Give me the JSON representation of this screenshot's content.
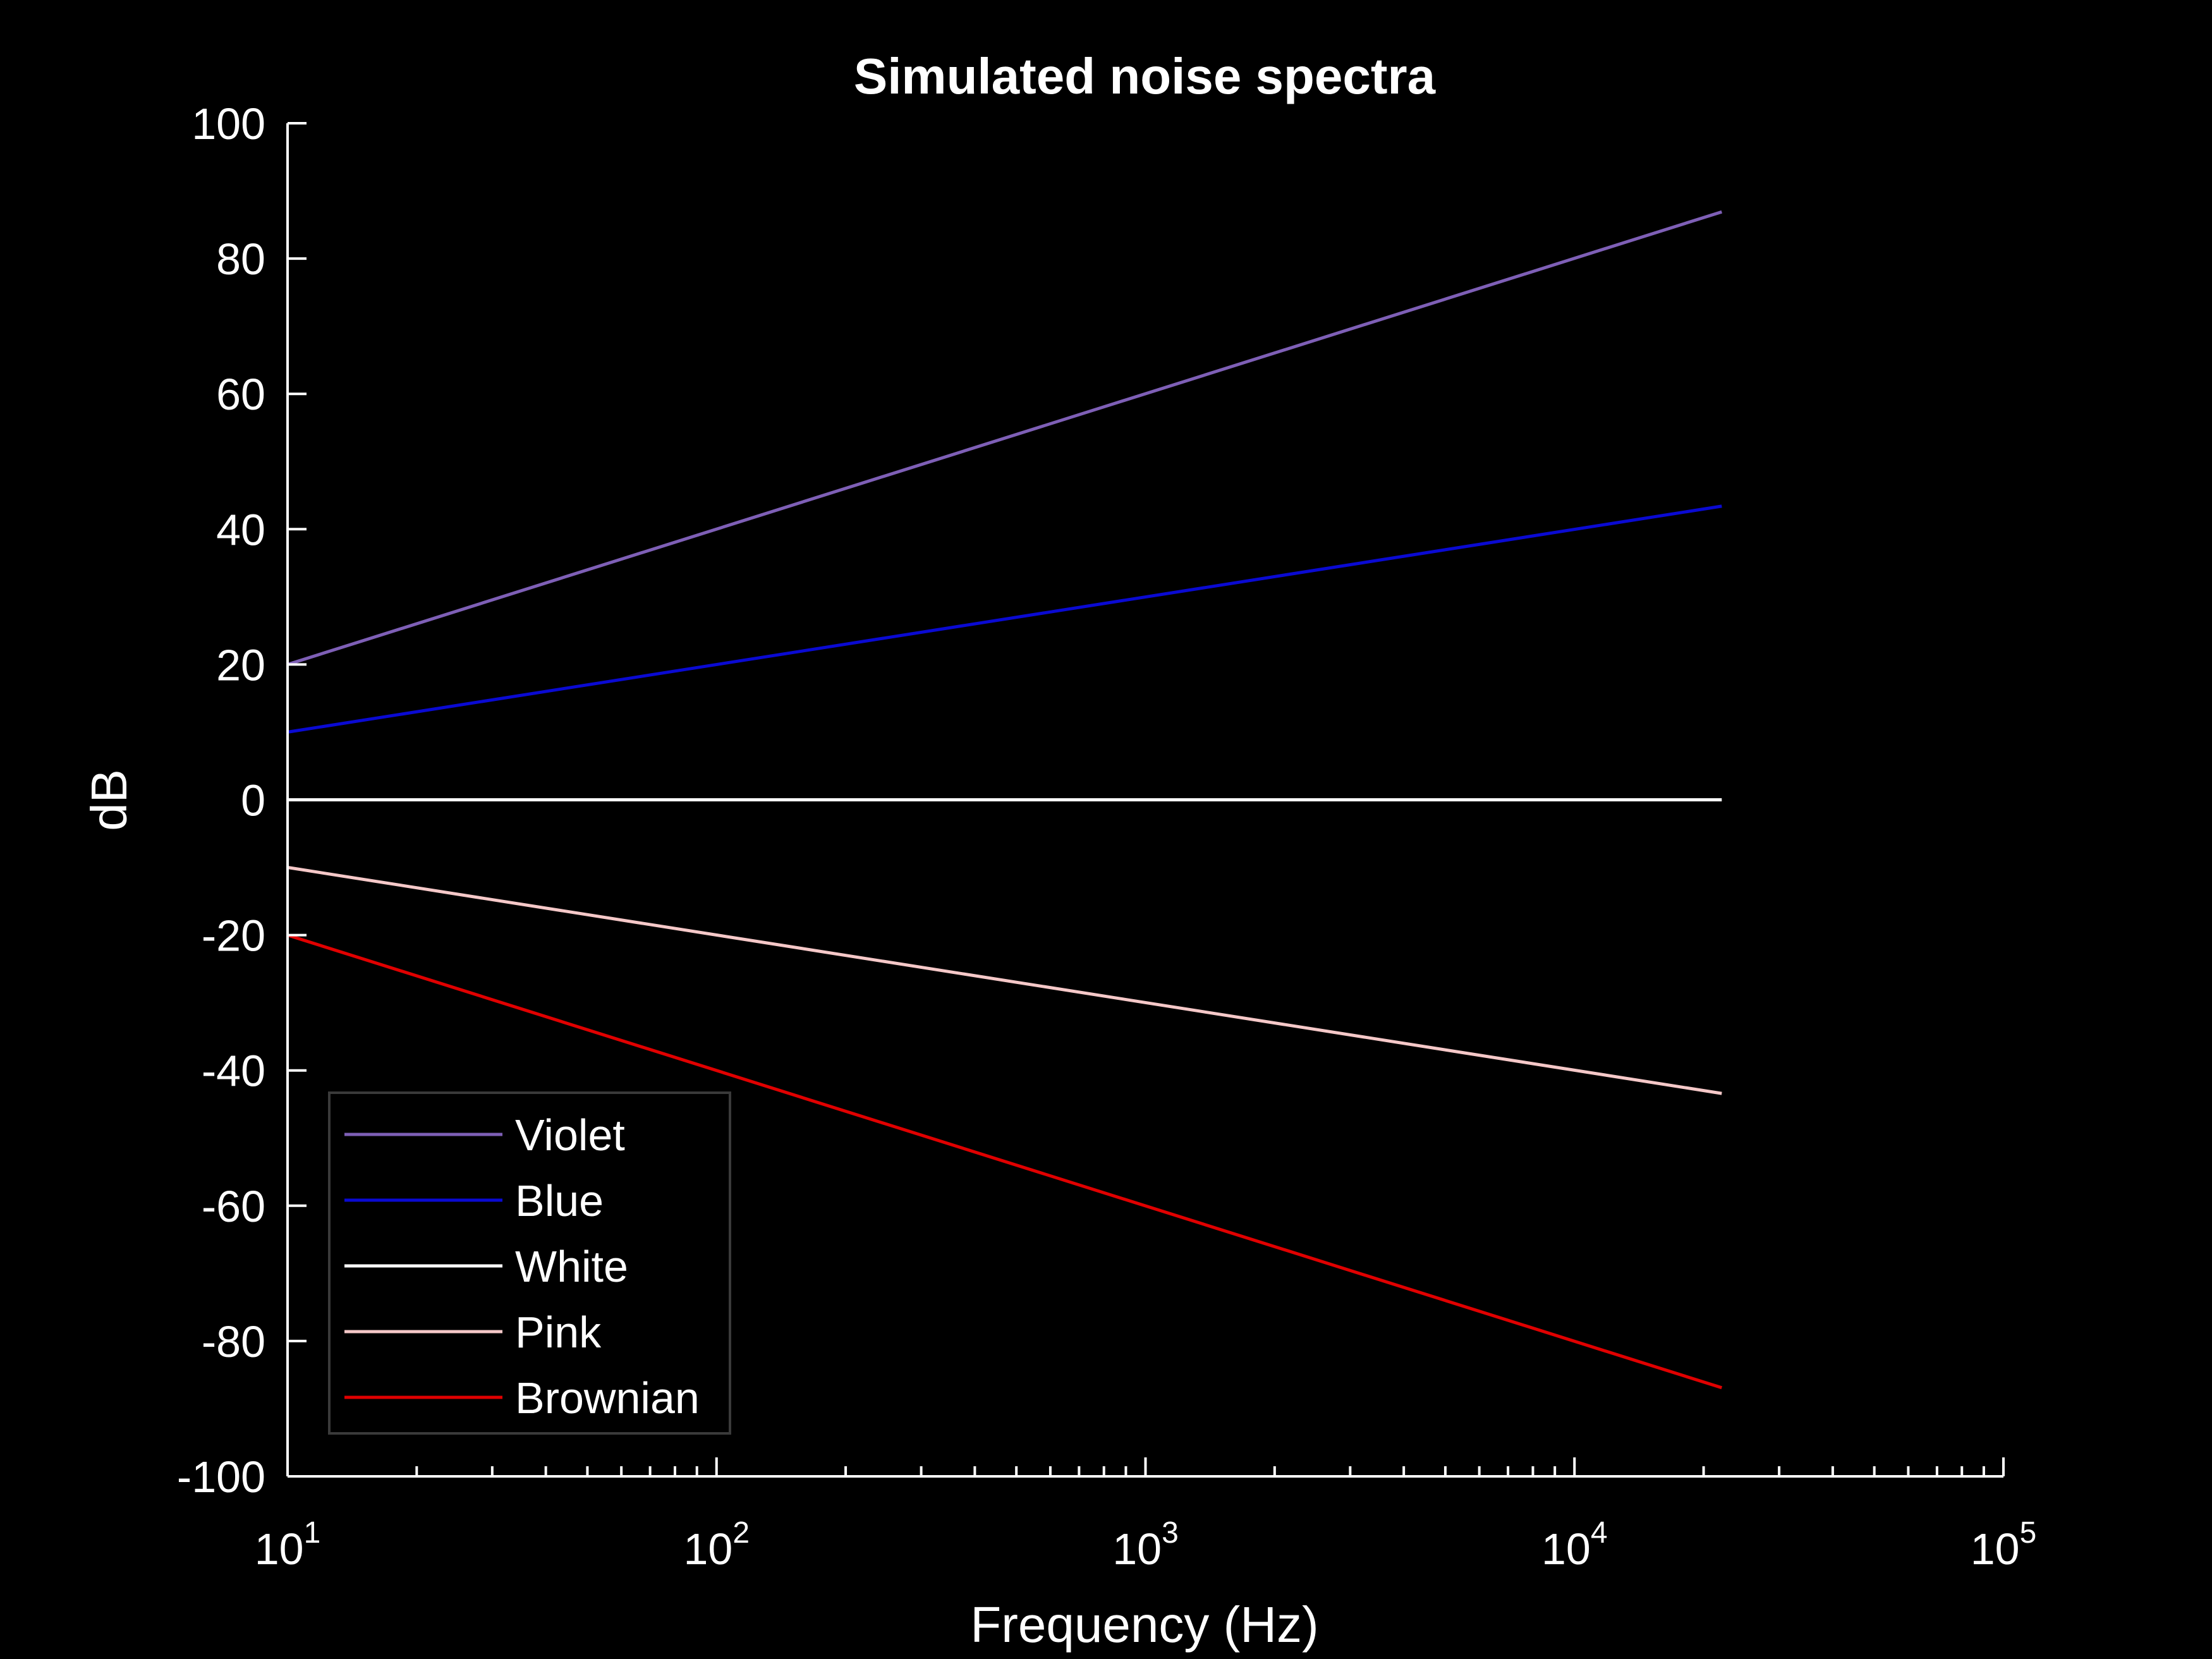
{
  "chart_data": {
    "type": "line",
    "title": "Simulated noise spectra",
    "xlabel": "Frequency (Hz)",
    "ylabel": "dB",
    "xscale": "log",
    "xlim": [
      10,
      100000
    ],
    "ylim": [
      -100,
      100
    ],
    "yticks": [
      -100,
      -80,
      -60,
      -40,
      -20,
      0,
      20,
      40,
      60,
      80,
      100
    ],
    "xticks": [
      {
        "base": "10",
        "exp": "1",
        "value": 10
      },
      {
        "base": "10",
        "exp": "2",
        "value": 100
      },
      {
        "base": "10",
        "exp": "3",
        "value": 1000
      },
      {
        "base": "10",
        "exp": "4",
        "value": 10000
      },
      {
        "base": "10",
        "exp": "5",
        "value": 100000
      }
    ],
    "grid": false,
    "legend_placement": "bottom-left",
    "series": [
      {
        "name": "Violet",
        "color": "#7e5fb6",
        "x": [
          10,
          22050
        ],
        "y": [
          20,
          86.9
        ]
      },
      {
        "name": "Blue",
        "color": "#0a0ad2",
        "x": [
          10,
          22050
        ],
        "y": [
          10,
          43.4
        ]
      },
      {
        "name": "White",
        "color": "#ffffff",
        "x": [
          10,
          22050
        ],
        "y": [
          0,
          0
        ]
      },
      {
        "name": "Pink",
        "color": "#f5c8c8",
        "x": [
          10,
          22050
        ],
        "y": [
          -10,
          -43.4
        ]
      },
      {
        "name": "Brownian",
        "color": "#e00000",
        "x": [
          10,
          22050
        ],
        "y": [
          -20,
          -86.9
        ]
      }
    ]
  }
}
